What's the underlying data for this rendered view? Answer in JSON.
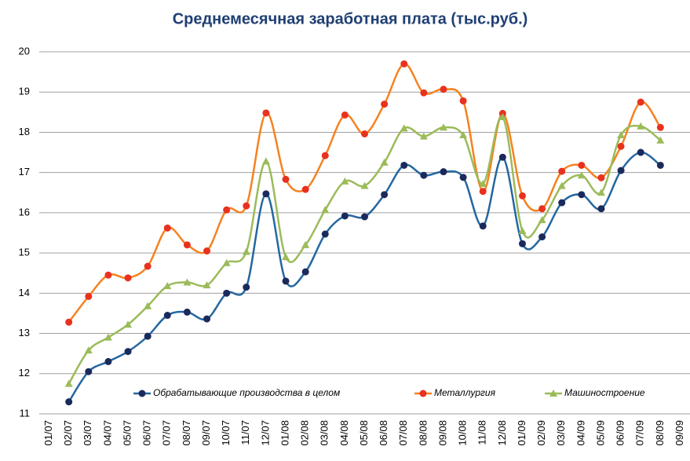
{
  "chart_data": {
    "type": "line",
    "title": "Среднемесячная заработная плата (тыс.руб.)",
    "categories": [
      "01/07",
      "02/07",
      "03/07",
      "04/07",
      "05/07",
      "06/07",
      "07/07",
      "08/07",
      "09/07",
      "10/07",
      "11/07",
      "12/07",
      "01/08",
      "02/08",
      "03/08",
      "04/08",
      "05/08",
      "06/08",
      "07/08",
      "08/08",
      "09/08",
      "10/08",
      "11/08",
      "12/08",
      "01/09",
      "02/09",
      "03/09",
      "04/09",
      "05/09",
      "06/09",
      "07/09",
      "08/09",
      "09/09"
    ],
    "series": [
      {
        "name": "Обрабатывающие производства в целом",
        "color": "#2467a0",
        "marker_color": "#1b2a5c",
        "marker": "circle",
        "values": [
          null,
          11.3,
          12.05,
          12.3,
          12.55,
          12.93,
          13.45,
          13.53,
          13.36,
          14.0,
          14.15,
          16.47,
          14.3,
          14.53,
          15.47,
          15.92,
          15.9,
          16.45,
          17.18,
          16.93,
          17.02,
          16.88,
          15.67,
          17.38,
          15.23,
          15.4,
          16.25,
          16.45,
          16.1,
          17.05,
          17.5,
          17.18,
          null
        ]
      },
      {
        "name": "Металлургия",
        "color": "#f58220",
        "marker_color": "#e8321e",
        "marker": "circle",
        "values": [
          null,
          13.28,
          13.92,
          14.45,
          14.38,
          14.67,
          15.62,
          15.2,
          15.05,
          16.07,
          16.17,
          18.48,
          16.83,
          16.58,
          17.42,
          18.43,
          17.96,
          18.7,
          19.7,
          18.98,
          19.07,
          18.78,
          16.53,
          18.47,
          16.42,
          16.1,
          17.03,
          17.18,
          16.87,
          17.65,
          18.75,
          18.12,
          null
        ]
      },
      {
        "name": "Машиностроение",
        "color": "#9bbb59",
        "marker_color": "#9bbb59",
        "marker": "triangle",
        "values": [
          null,
          11.75,
          12.58,
          12.9,
          13.22,
          13.68,
          14.18,
          14.27,
          14.2,
          14.75,
          15.03,
          17.28,
          14.9,
          15.2,
          16.07,
          16.78,
          16.67,
          17.25,
          18.1,
          17.9,
          18.12,
          17.93,
          16.72,
          18.38,
          15.55,
          15.82,
          16.67,
          16.93,
          16.5,
          17.93,
          18.15,
          17.8,
          null
        ]
      }
    ],
    "ylim": [
      11,
      20
    ],
    "yticks": [
      11,
      12,
      13,
      14,
      15,
      16,
      17,
      18,
      19,
      20
    ],
    "grid": true,
    "smooth": true,
    "legend": "bottom"
  }
}
